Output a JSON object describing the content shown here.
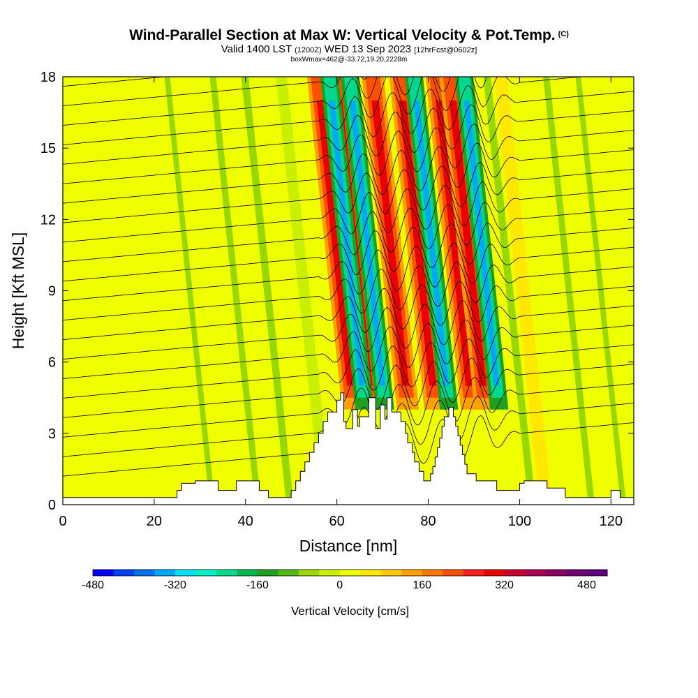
{
  "chart_data": {
    "type": "heatmap",
    "title": "Wind-Parallel Section at Max W: Vertical Velocity & Pot.Temp.",
    "title_mark": "(C)",
    "valid_prefix": "Valid 1400 LST",
    "valid_zulu": "(1200Z)",
    "valid_date": "WED 13 Sep 2023",
    "forecast": "[12hrFcst@0602z]",
    "box_info": "boxWmax=462@-33.72,19.20,2228m",
    "xlabel": "Distance [nm]",
    "ylabel": "Height [Kft MSL]",
    "xlim": [
      0,
      125
    ],
    "ylim": [
      0,
      18
    ],
    "xticks": [
      0,
      20,
      40,
      60,
      80,
      100,
      120
    ],
    "yticks": [
      0,
      3,
      6,
      9,
      12,
      15,
      18
    ],
    "colorbar": {
      "label": "Vertical Velocity [cm/s]",
      "min": -480,
      "max": 520,
      "step": 40,
      "tick_values": [
        -480,
        -320,
        -160,
        0,
        160,
        320,
        480
      ],
      "colors": [
        "#0000ff",
        "#0040ff",
        "#0070f0",
        "#00a8f8",
        "#00e0ff",
        "#00f0c8",
        "#00d890",
        "#00b850",
        "#20a020",
        "#50b818",
        "#98d800",
        "#c8f000",
        "#f0ff00",
        "#ffe800",
        "#ffc800",
        "#ffa000",
        "#ff7800",
        "#ff5000",
        "#ff2020",
        "#e80000",
        "#c80030",
        "#a80050",
        "#880060",
        "#700070",
        "#600080"
      ]
    },
    "updraft_centers_nm": [
      63,
      67,
      75,
      81,
      89,
      92
    ],
    "downdraft_centers_nm": [
      65.5,
      70,
      84,
      95
    ],
    "terrain_kft": [
      [
        0,
        0.3
      ],
      [
        25,
        0.3
      ],
      [
        25,
        0.6
      ],
      [
        26,
        0.6
      ],
      [
        26,
        0.9
      ],
      [
        29,
        0.9
      ],
      [
        29,
        1
      ],
      [
        34,
        1
      ],
      [
        34,
        0.6
      ],
      [
        38,
        0.6
      ],
      [
        38,
        1
      ],
      [
        43,
        1
      ],
      [
        43,
        0.6
      ],
      [
        45,
        0.6
      ],
      [
        45,
        0.3
      ],
      [
        50,
        0.3
      ],
      [
        50,
        0.6
      ],
      [
        51,
        0.6
      ],
      [
        51,
        1
      ],
      [
        52,
        1
      ],
      [
        52,
        1.4
      ],
      [
        53,
        1.4
      ],
      [
        53,
        1.8
      ],
      [
        54,
        1.8
      ],
      [
        54,
        2.2
      ],
      [
        55,
        2.2
      ],
      [
        55,
        2.6
      ],
      [
        56,
        2.6
      ],
      [
        56,
        3
      ],
      [
        57,
        3
      ],
      [
        57,
        3.5
      ],
      [
        58,
        3.5
      ],
      [
        58,
        3.9
      ],
      [
        60,
        3.9
      ],
      [
        60,
        4.4
      ],
      [
        60.8,
        4.4
      ],
      [
        60.8,
        4.7
      ],
      [
        61.5,
        4.7
      ],
      [
        61.5,
        3.5
      ],
      [
        62,
        3.5
      ],
      [
        62,
        3.2
      ],
      [
        63.5,
        3.2
      ],
      [
        63.5,
        4
      ],
      [
        64.5,
        4
      ],
      [
        64.5,
        3.3
      ],
      [
        65,
        3.3
      ],
      [
        65,
        3.7
      ],
      [
        67,
        3.7
      ],
      [
        67,
        4.5
      ],
      [
        68.5,
        4.5
      ],
      [
        68.5,
        3.2
      ],
      [
        69.5,
        3.2
      ],
      [
        69.5,
        4.2
      ],
      [
        70.5,
        4.2
      ],
      [
        70.5,
        3.6
      ],
      [
        71,
        3.6
      ],
      [
        71,
        4.5
      ],
      [
        72,
        4.5
      ],
      [
        72,
        3.9
      ],
      [
        74,
        3.9
      ],
      [
        74,
        3.5
      ],
      [
        75,
        3.5
      ],
      [
        75,
        3
      ],
      [
        75.5,
        3
      ],
      [
        75.5,
        2.6
      ],
      [
        76.5,
        2.6
      ],
      [
        76.5,
        2.2
      ],
      [
        77,
        2.2
      ],
      [
        77,
        1.8
      ],
      [
        78,
        1.8
      ],
      [
        78,
        1.4
      ],
      [
        79,
        1.4
      ],
      [
        79,
        1
      ],
      [
        80.5,
        1
      ],
      [
        80.5,
        1.3
      ],
      [
        81,
        1.3
      ],
      [
        81,
        1.6
      ],
      [
        81.5,
        1.6
      ],
      [
        81.5,
        2
      ],
      [
        82,
        2
      ],
      [
        82,
        2.4
      ],
      [
        82.5,
        2.4
      ],
      [
        82.5,
        2.8
      ],
      [
        83,
        2.8
      ],
      [
        83,
        3.3
      ],
      [
        83.5,
        3.3
      ],
      [
        83.5,
        3.7
      ],
      [
        84.5,
        3.7
      ],
      [
        84.5,
        4.1
      ],
      [
        85.5,
        4.1
      ],
      [
        85.5,
        3.7
      ],
      [
        86,
        3.7
      ],
      [
        86,
        3.3
      ],
      [
        86.5,
        3.3
      ],
      [
        86.5,
        2.9
      ],
      [
        87,
        2.9
      ],
      [
        87,
        2.5
      ],
      [
        87.5,
        2.5
      ],
      [
        87.5,
        2.1
      ],
      [
        88,
        2.1
      ],
      [
        88,
        1.7
      ],
      [
        88.5,
        1.7
      ],
      [
        88.5,
        1.3
      ],
      [
        90.5,
        1.3
      ],
      [
        90.5,
        1
      ],
      [
        95,
        1
      ],
      [
        95,
        0.6
      ],
      [
        100,
        0.6
      ],
      [
        100,
        0.9
      ],
      [
        101,
        0.9
      ],
      [
        101,
        1
      ],
      [
        106,
        1
      ],
      [
        106,
        0.7
      ],
      [
        110,
        0.7
      ],
      [
        110,
        0.3
      ],
      [
        120,
        0.3
      ],
      [
        120,
        0.6
      ],
      [
        122,
        0.6
      ],
      [
        122,
        0.3
      ],
      [
        125,
        0.3
      ]
    ]
  }
}
